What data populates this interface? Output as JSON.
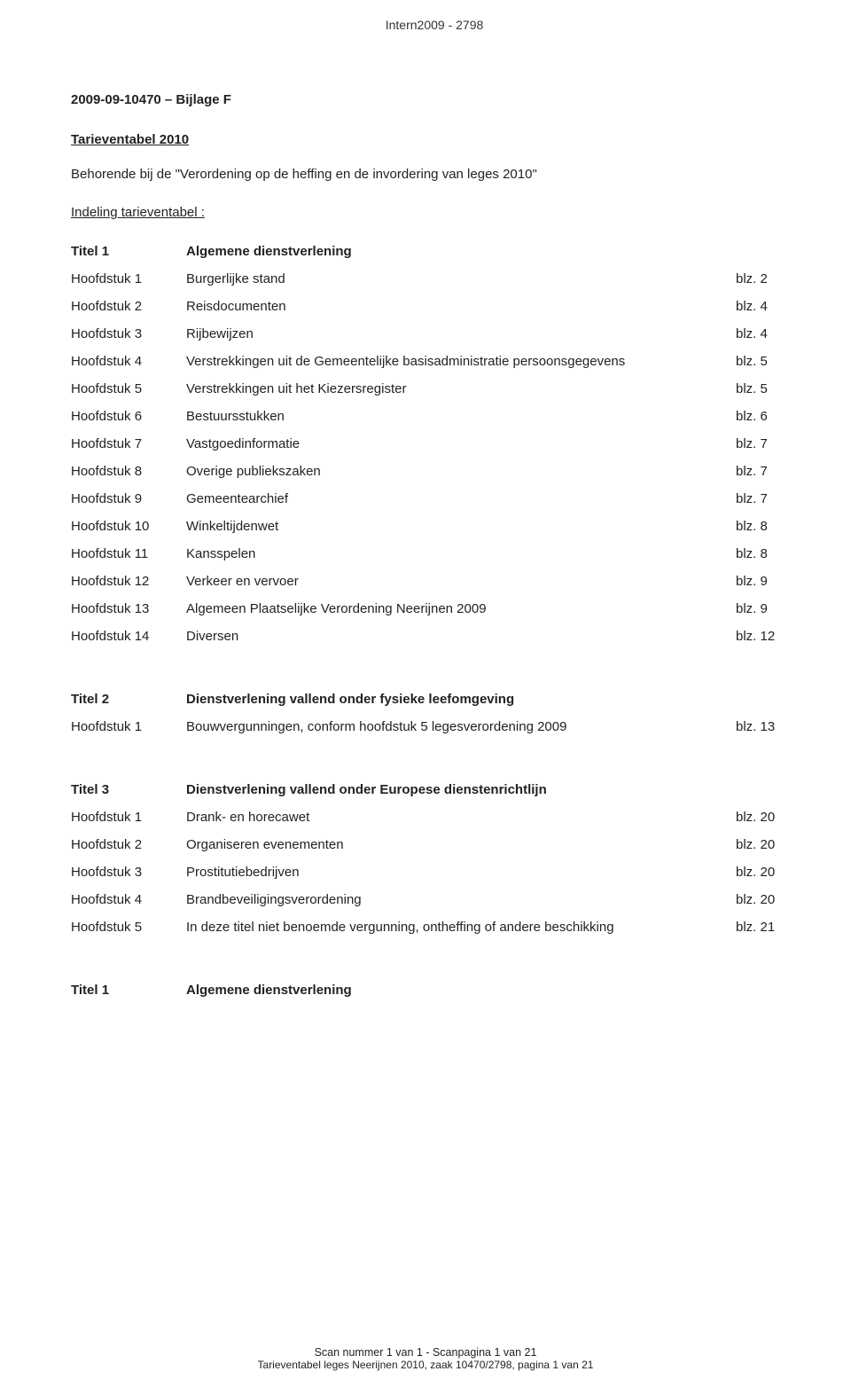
{
  "header_ref": "Intern2009 - 2798",
  "doc_number": "2009-09-10470 – Bijlage F",
  "main_title": "Tarieventabel 2010",
  "intro": "Behorende bij de \"Verordening op de heffing en de invordering van leges 2010\"",
  "section_label": "Indeling tarieventabel :",
  "titel1": {
    "label": "Titel 1",
    "title": "Algemene dienstverlening",
    "rows": [
      {
        "a": "Hoofdstuk 1",
        "b": "Burgerlijke stand",
        "c": "blz. 2"
      },
      {
        "a": "Hoofdstuk 2",
        "b": "Reisdocumenten",
        "c": "blz. 4"
      },
      {
        "a": "Hoofdstuk 3",
        "b": "Rijbewijzen",
        "c": "blz. 4"
      },
      {
        "a": "Hoofdstuk 4",
        "b": "Verstrekkingen uit de Gemeentelijke basisadministratie persoonsgegevens",
        "c": "blz. 5"
      },
      {
        "a": "Hoofdstuk 5",
        "b": "Verstrekkingen uit het Kiezersregister",
        "c": "blz. 5"
      },
      {
        "a": "Hoofdstuk 6",
        "b": "Bestuursstukken",
        "c": "blz. 6"
      },
      {
        "a": "Hoofdstuk 7",
        "b": "Vastgoedinformatie",
        "c": "blz. 7"
      },
      {
        "a": "Hoofdstuk 8",
        "b": "Overige publiekszaken",
        "c": "blz. 7"
      },
      {
        "a": "Hoofdstuk 9",
        "b": "Gemeentearchief",
        "c": "blz. 7"
      },
      {
        "a": "Hoofdstuk 10",
        "b": "Winkeltijdenwet",
        "c": "blz. 8"
      },
      {
        "a": "Hoofdstuk 11",
        "b": "Kansspelen",
        "c": "blz. 8"
      },
      {
        "a": "Hoofdstuk 12",
        "b": "Verkeer en vervoer",
        "c": "blz. 9"
      },
      {
        "a": "Hoofdstuk 13",
        "b": "Algemeen Plaatselijke Verordening Neerijnen 2009",
        "c": "blz. 9"
      },
      {
        "a": "Hoofdstuk 14",
        "b": "Diversen",
        "c": "blz. 12"
      }
    ]
  },
  "titel2": {
    "label": "Titel 2",
    "title": "Dienstverlening vallend onder fysieke leefomgeving",
    "rows": [
      {
        "a": "Hoofdstuk 1",
        "b": "Bouwvergunningen, conform hoofdstuk 5 legesverordening 2009",
        "c": "blz. 13"
      }
    ]
  },
  "titel3": {
    "label": "Titel 3",
    "title": "Dienstverlening vallend onder Europese dienstenrichtlijn",
    "rows": [
      {
        "a": "Hoofdstuk 1",
        "b": "Drank- en horecawet",
        "c": "blz. 20"
      },
      {
        "a": "Hoofdstuk 2",
        "b": "Organiseren evenementen",
        "c": "blz. 20"
      },
      {
        "a": "Hoofdstuk 3",
        "b": "Prostitutiebedrijven",
        "c": "blz. 20"
      },
      {
        "a": "Hoofdstuk 4",
        "b": "Brandbeveiligingsverordening",
        "c": "blz. 20"
      },
      {
        "a": "Hoofdstuk 5",
        "b": "In deze titel niet benoemde vergunning, ontheffing of andere beschikking",
        "c": "blz. 21"
      }
    ]
  },
  "closing": {
    "label": "Titel 1",
    "title": "Algemene dienstverlening"
  },
  "footer": {
    "line1": "Scan nummer 1 van 1 - Scanpagina 1 van 21",
    "line2": "Tarieventabel leges Neerijnen 2010, zaak 10470/2798, pagina 1 van 21"
  }
}
